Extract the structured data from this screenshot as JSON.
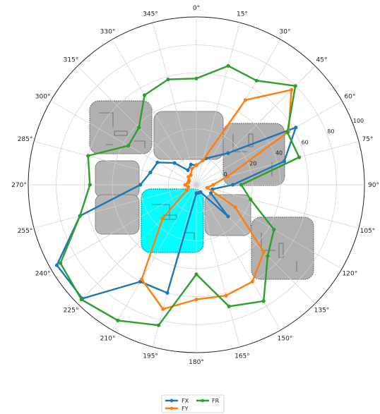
{
  "chart_data": {
    "type": "polar-line",
    "angle_ticks": [
      "0°",
      "15°",
      "30°",
      "45°",
      "60°",
      "75°",
      "90°",
      "105°",
      "120°",
      "135°",
      "150°",
      "165°",
      "180°",
      "195°",
      "210°",
      "225°",
      "240°",
      "255°",
      "270°",
      "285°",
      "300°",
      "315°",
      "330°",
      "345°"
    ],
    "radial_ticks": [
      "0",
      "20",
      "40",
      "60",
      "80",
      "100"
    ],
    "rlim": [
      -20,
      100
    ],
    "grid": true,
    "legend_placement": "bottom-center",
    "colors": {
      "FX": "#1f77b4",
      "FY": "#ff7f0e",
      "FR": "#2ca02c",
      "pad_highlight": "#00ffff",
      "pad": "#b0b0b0"
    },
    "series": [
      {
        "name": "FX",
        "color": "#1f77b4",
        "points": [
          [
            0,
            -6
          ],
          [
            20,
            0
          ],
          [
            45,
            12
          ],
          [
            60,
            62
          ],
          [
            75,
            45
          ],
          [
            90,
            6
          ],
          [
            105,
            -8
          ],
          [
            120,
            -8
          ],
          [
            135,
            12
          ],
          [
            150,
            -14
          ],
          [
            165,
            -14
          ],
          [
            180,
            -14
          ],
          [
            195,
            60
          ],
          [
            210,
            60
          ],
          [
            225,
            95
          ],
          [
            240,
            95
          ],
          [
            255,
            66
          ],
          [
            270,
            20
          ],
          [
            285,
            14
          ],
          [
            300,
            12
          ],
          [
            315,
            2
          ],
          [
            330,
            -8
          ],
          [
            345,
            -5
          ]
        ]
      },
      {
        "name": "FY",
        "color": "#ff7f0e",
        "points": [
          [
            0,
            -6
          ],
          [
            15,
            -2
          ],
          [
            30,
            50
          ],
          [
            45,
            76
          ],
          [
            60,
            56
          ],
          [
            75,
            3
          ],
          [
            90,
            -8
          ],
          [
            105,
            -12
          ],
          [
            120,
            12
          ],
          [
            135,
            48
          ],
          [
            150,
            60
          ],
          [
            165,
            62
          ],
          [
            180,
            62
          ],
          [
            195,
            72
          ],
          [
            210,
            58
          ],
          [
            225,
            14
          ],
          [
            240,
            -12
          ],
          [
            255,
            -14
          ],
          [
            270,
            -12
          ],
          [
            285,
            -14
          ],
          [
            300,
            -14
          ],
          [
            315,
            -12
          ],
          [
            330,
            -12
          ],
          [
            345,
            -8
          ]
        ]
      },
      {
        "name": "FR",
        "color": "#2ca02c",
        "points": [
          [
            0,
            56
          ],
          [
            15,
            68
          ],
          [
            30,
            66
          ],
          [
            45,
            80
          ],
          [
            60,
            55
          ],
          [
            75,
            56
          ],
          [
            90,
            12
          ],
          [
            105,
            20
          ],
          [
            120,
            44
          ],
          [
            135,
            52
          ],
          [
            150,
            76
          ],
          [
            165,
            70
          ],
          [
            180,
            44
          ],
          [
            195,
            84
          ],
          [
            210,
            92
          ],
          [
            225,
            96
          ],
          [
            240,
            92
          ],
          [
            255,
            66
          ],
          [
            270,
            56
          ],
          [
            285,
            60
          ],
          [
            300,
            36
          ],
          [
            315,
            38
          ],
          [
            330,
            54
          ],
          [
            345,
            58
          ]
        ]
      }
    ]
  }
}
